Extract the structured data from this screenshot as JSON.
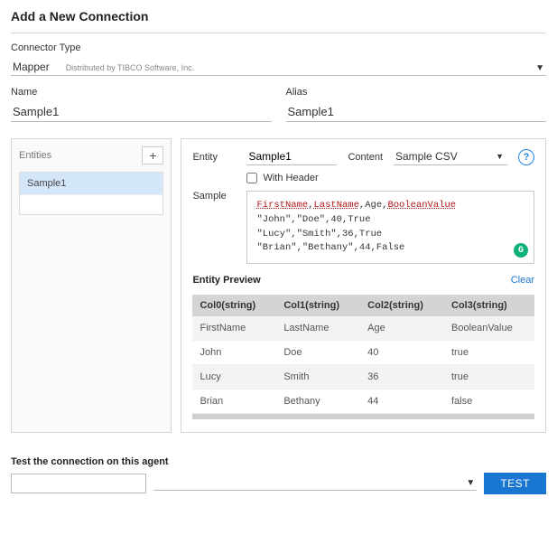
{
  "page": {
    "title": "Add a New Connection"
  },
  "connector": {
    "label": "Connector Type",
    "value": "Mapper",
    "distributed_by": "Distributed by TIBCO Software, Inc."
  },
  "name": {
    "label": "Name",
    "value": "Sample1"
  },
  "alias": {
    "label": "Alias",
    "value": "Sample1"
  },
  "entities": {
    "title": "Entities",
    "add_icon": "+",
    "items": [
      {
        "label": "Sample1",
        "selected": true
      }
    ]
  },
  "config": {
    "entity": {
      "label": "Entity",
      "value": "Sample1"
    },
    "content": {
      "label": "Content",
      "value": "Sample CSV"
    },
    "help_icon": "?",
    "with_header": {
      "label": "With Header",
      "checked": false
    },
    "sample": {
      "label": "Sample",
      "header_tokens": [
        "FirstName",
        "LastName",
        "Age",
        "BooleanValue"
      ],
      "header_red_indices": [
        0,
        1,
        3
      ],
      "lines": [
        "\"John\",\"Doe\",40,True",
        "\"Lucy\",\"Smith\",36,True",
        "\"Brian\",\"Bethany\",44,False"
      ],
      "badge": "G"
    }
  },
  "preview": {
    "title": "Entity Preview",
    "clear": "Clear",
    "columns": [
      "Col0(string)",
      "Col1(string)",
      "Col2(string)",
      "Col3(string)"
    ],
    "rows": [
      [
        "FirstName",
        "LastName",
        "Age",
        "BooleanValue"
      ],
      [
        "John",
        "Doe",
        "40",
        "true"
      ],
      [
        "Lucy",
        "Smith",
        "36",
        "true"
      ],
      [
        "Brian",
        "Bethany",
        "44",
        "false"
      ]
    ]
  },
  "footer": {
    "label": "Test the connection on this agent",
    "agent_text": "",
    "agent_select": "",
    "test_label": "TEST"
  },
  "colors": {
    "primary": "#1976d2",
    "header_bg": "#d4d4d4",
    "selected_bg": "#d4e6f9",
    "badge_green": "#0bb07b",
    "red_underline": "#b01818"
  }
}
